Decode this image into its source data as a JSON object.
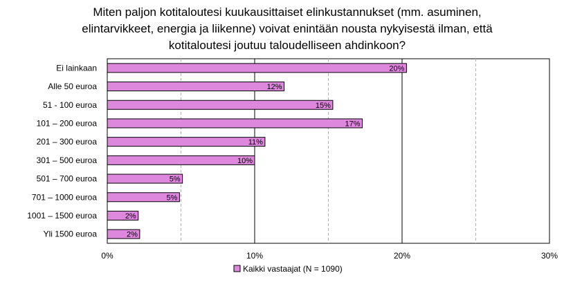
{
  "chart_data": {
    "type": "bar",
    "orientation": "horizontal",
    "title": "Miten paljon kotitaloutesi kuukausittaiset elinkustannukset (mm. asuminen, elintarvikkeet, energia ja liikenne) voivat enintään nousta nykyisestä ilman, että kotitaloutesi joutuu taloudelliseen ahdinkoon?",
    "title_lines": [
      "Miten paljon kotitaloutesi kuukausittaiset elinkustannukset (mm. asuminen,",
      "elintarvikkeet, energia ja liikenne) voivat enintään nousta nykyisestä ilman, että",
      "kotitaloutesi joutuu taloudelliseen ahdinkoon?"
    ],
    "categories": [
      "Ei lainkaan",
      "Alle 50 euroa",
      "51 - 100 euroa",
      "101 – 200 euroa",
      "201 – 300 euroa",
      "301 – 500 euroa",
      "501 – 700 euroa",
      "701 – 1000 euroa",
      "1001 – 1500 euroa",
      "Yli 1500 euroa"
    ],
    "series": [
      {
        "name": "Kaikki vastaajat (N = 1090)",
        "values": [
          20.3,
          12.0,
          15.3,
          17.3,
          10.7,
          10.0,
          5.1,
          4.9,
          2.1,
          2.2
        ],
        "data_labels": [
          "20%",
          "12%",
          "15%",
          "17%",
          "11%",
          "10%",
          "5%",
          "5%",
          "2%",
          "2%"
        ],
        "color": "#dd88dd"
      }
    ],
    "xlim": [
      0,
      30
    ],
    "x_ticks": [
      "0%",
      "10%",
      "20%",
      "30%"
    ],
    "x_tick_values": [
      0,
      10,
      20,
      30
    ],
    "minor_grid_values": [
      5,
      15,
      25
    ],
    "grid": true,
    "legend_position": "bottom"
  }
}
